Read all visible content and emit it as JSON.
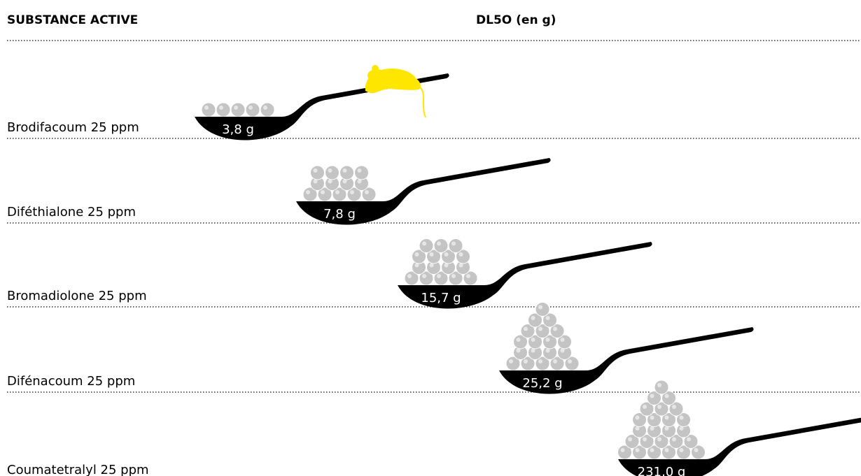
{
  "header": {
    "substance": "SUBSTANCE ACTIVE",
    "dl50": "DL5O  (en g)"
  },
  "rows": [
    {
      "name": "Brodifacoum 25 ppm",
      "dose": "3,8 g"
    },
    {
      "name": "Diféthialone 25 ppm",
      "dose": "7,8 g"
    },
    {
      "name": "Bromadiolone 25 ppm",
      "dose": "15,7 g"
    },
    {
      "name": "Difénacoum 25 ppm",
      "dose": "25,2 g"
    },
    {
      "name": "Coumatetralyl 25 ppm",
      "dose": "231,0 g"
    }
  ]
}
